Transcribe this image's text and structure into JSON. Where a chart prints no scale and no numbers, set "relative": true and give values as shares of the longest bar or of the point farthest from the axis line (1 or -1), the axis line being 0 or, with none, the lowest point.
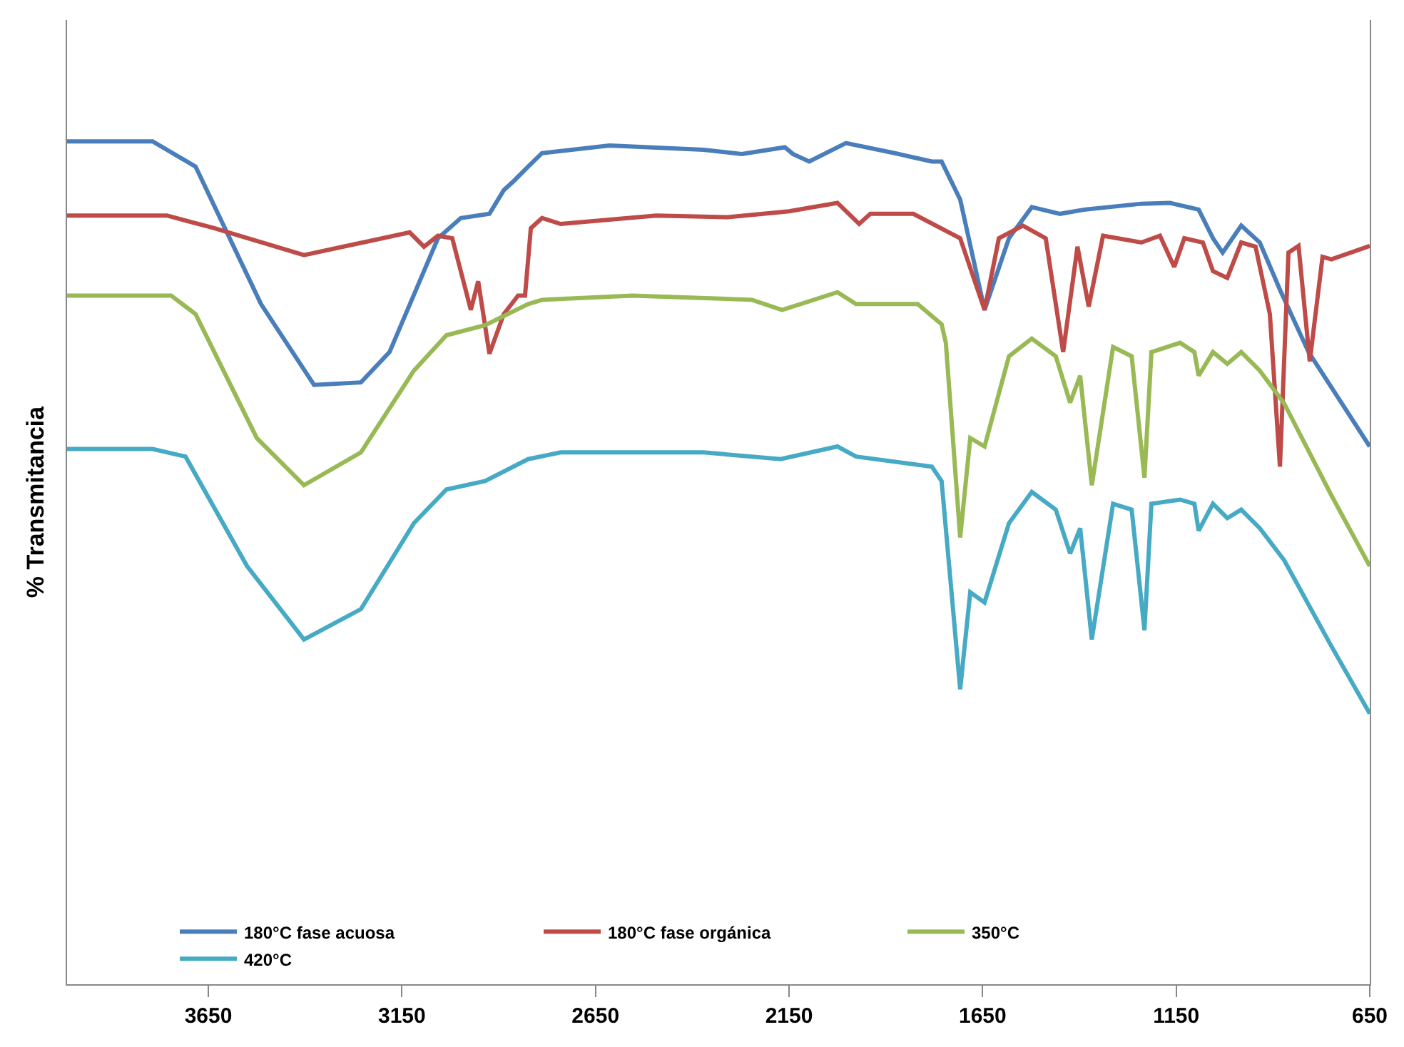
{
  "chart_data": {
    "type": "line",
    "ylabel": "% Transmitancia",
    "relative": true,
    "xlim": [
      4015,
      650
    ],
    "xticks": [
      3650,
      3150,
      2650,
      2150,
      1650,
      1150,
      650
    ],
    "grid": false,
    "legend": "bottom",
    "marker": "none",
    "line_style": "solid",
    "series": [
      {
        "name": "180°C fase acuosa",
        "color": "#4a7ebb",
        "x": [
          4015,
          3794,
          3683,
          3514,
          3377,
          3256,
          3182,
          3057,
          2998,
          2924,
          2887,
          2861,
          2824,
          2788,
          2614,
          2371,
          2272,
          2161,
          2140,
          2098,
          2003,
          1877,
          1781,
          1756,
          1708,
          1645,
          1582,
          1523,
          1450,
          1387,
          1240,
          1166,
          1092,
          1055,
          1030,
          982,
          934,
          882,
          808,
          650
        ],
        "values": [
          1.0,
          1.0,
          0.97,
          0.807,
          0.711,
          0.714,
          0.75,
          0.885,
          0.909,
          0.914,
          0.942,
          0.953,
          0.97,
          0.986,
          0.995,
          0.99,
          0.985,
          0.993,
          0.985,
          0.976,
          0.998,
          0.986,
          0.976,
          0.976,
          0.931,
          0.8,
          0.885,
          0.922,
          0.914,
          0.919,
          0.926,
          0.927,
          0.919,
          0.885,
          0.868,
          0.9,
          0.88,
          0.824,
          0.75,
          0.638
        ]
      },
      {
        "name": "180°C fase orgánica",
        "color": "#be4b48",
        "x": [
          4015,
          3757,
          3635,
          3403,
          3130,
          3093,
          3057,
          3020,
          2972,
          2953,
          2924,
          2887,
          2850,
          2832,
          2817,
          2788,
          2740,
          2493,
          2308,
          2150,
          2025,
          1969,
          1940,
          1829,
          1708,
          1645,
          1608,
          1546,
          1487,
          1442,
          1405,
          1376,
          1339,
          1240,
          1192,
          1155,
          1129,
          1081,
          1055,
          1018,
          982,
          945,
          908,
          882,
          860,
          834,
          805,
          772,
          749,
          650
        ],
        "values": [
          0.912,
          0.912,
          0.897,
          0.865,
          0.892,
          0.875,
          0.888,
          0.885,
          0.8,
          0.834,
          0.748,
          0.795,
          0.817,
          0.817,
          0.897,
          0.909,
          0.902,
          0.912,
          0.91,
          0.917,
          0.927,
          0.902,
          0.914,
          0.914,
          0.885,
          0.8,
          0.885,
          0.9,
          0.885,
          0.75,
          0.875,
          0.804,
          0.888,
          0.88,
          0.888,
          0.851,
          0.885,
          0.88,
          0.846,
          0.838,
          0.88,
          0.875,
          0.795,
          0.614,
          0.868,
          0.876,
          0.739,
          0.863,
          0.86,
          0.876
        ]
      },
      {
        "name": "350°C",
        "color": "#98b954",
        "x": [
          4015,
          3746,
          3683,
          3525,
          3403,
          3256,
          3119,
          3035,
          2935,
          2824,
          2788,
          2555,
          2246,
          2168,
          2025,
          1977,
          1818,
          1756,
          1745,
          1708,
          1682,
          1645,
          1582,
          1523,
          1461,
          1424,
          1398,
          1368,
          1313,
          1265,
          1232,
          1214,
          1140,
          1103,
          1092,
          1055,
          1018,
          982,
          934,
          871,
          749,
          650
        ],
        "values": [
          0.817,
          0.817,
          0.795,
          0.648,
          0.592,
          0.631,
          0.728,
          0.77,
          0.782,
          0.807,
          0.812,
          0.817,
          0.812,
          0.8,
          0.821,
          0.807,
          0.807,
          0.783,
          0.761,
          0.53,
          0.648,
          0.638,
          0.745,
          0.766,
          0.745,
          0.69,
          0.722,
          0.592,
          0.756,
          0.745,
          0.601,
          0.75,
          0.761,
          0.75,
          0.722,
          0.75,
          0.736,
          0.75,
          0.728,
          0.689,
          0.58,
          0.496
        ]
      },
      {
        "name": "420°C",
        "color": "#46aac5",
        "x": [
          4015,
          3794,
          3709,
          3550,
          3403,
          3256,
          3119,
          3035,
          2935,
          2824,
          2740,
          2371,
          2172,
          2025,
          1977,
          1781,
          1756,
          1708,
          1682,
          1645,
          1582,
          1523,
          1461,
          1424,
          1398,
          1368,
          1313,
          1265,
          1232,
          1214,
          1140,
          1103,
          1092,
          1055,
          1018,
          982,
          934,
          871,
          749,
          650
        ],
        "values": [
          0.635,
          0.635,
          0.626,
          0.496,
          0.409,
          0.445,
          0.547,
          0.587,
          0.597,
          0.623,
          0.631,
          0.631,
          0.623,
          0.638,
          0.626,
          0.614,
          0.597,
          0.35,
          0.465,
          0.453,
          0.547,
          0.584,
          0.563,
          0.511,
          0.541,
          0.409,
          0.57,
          0.563,
          0.42,
          0.57,
          0.575,
          0.57,
          0.538,
          0.57,
          0.553,
          0.563,
          0.541,
          0.503,
          0.401,
          0.321
        ]
      }
    ]
  }
}
